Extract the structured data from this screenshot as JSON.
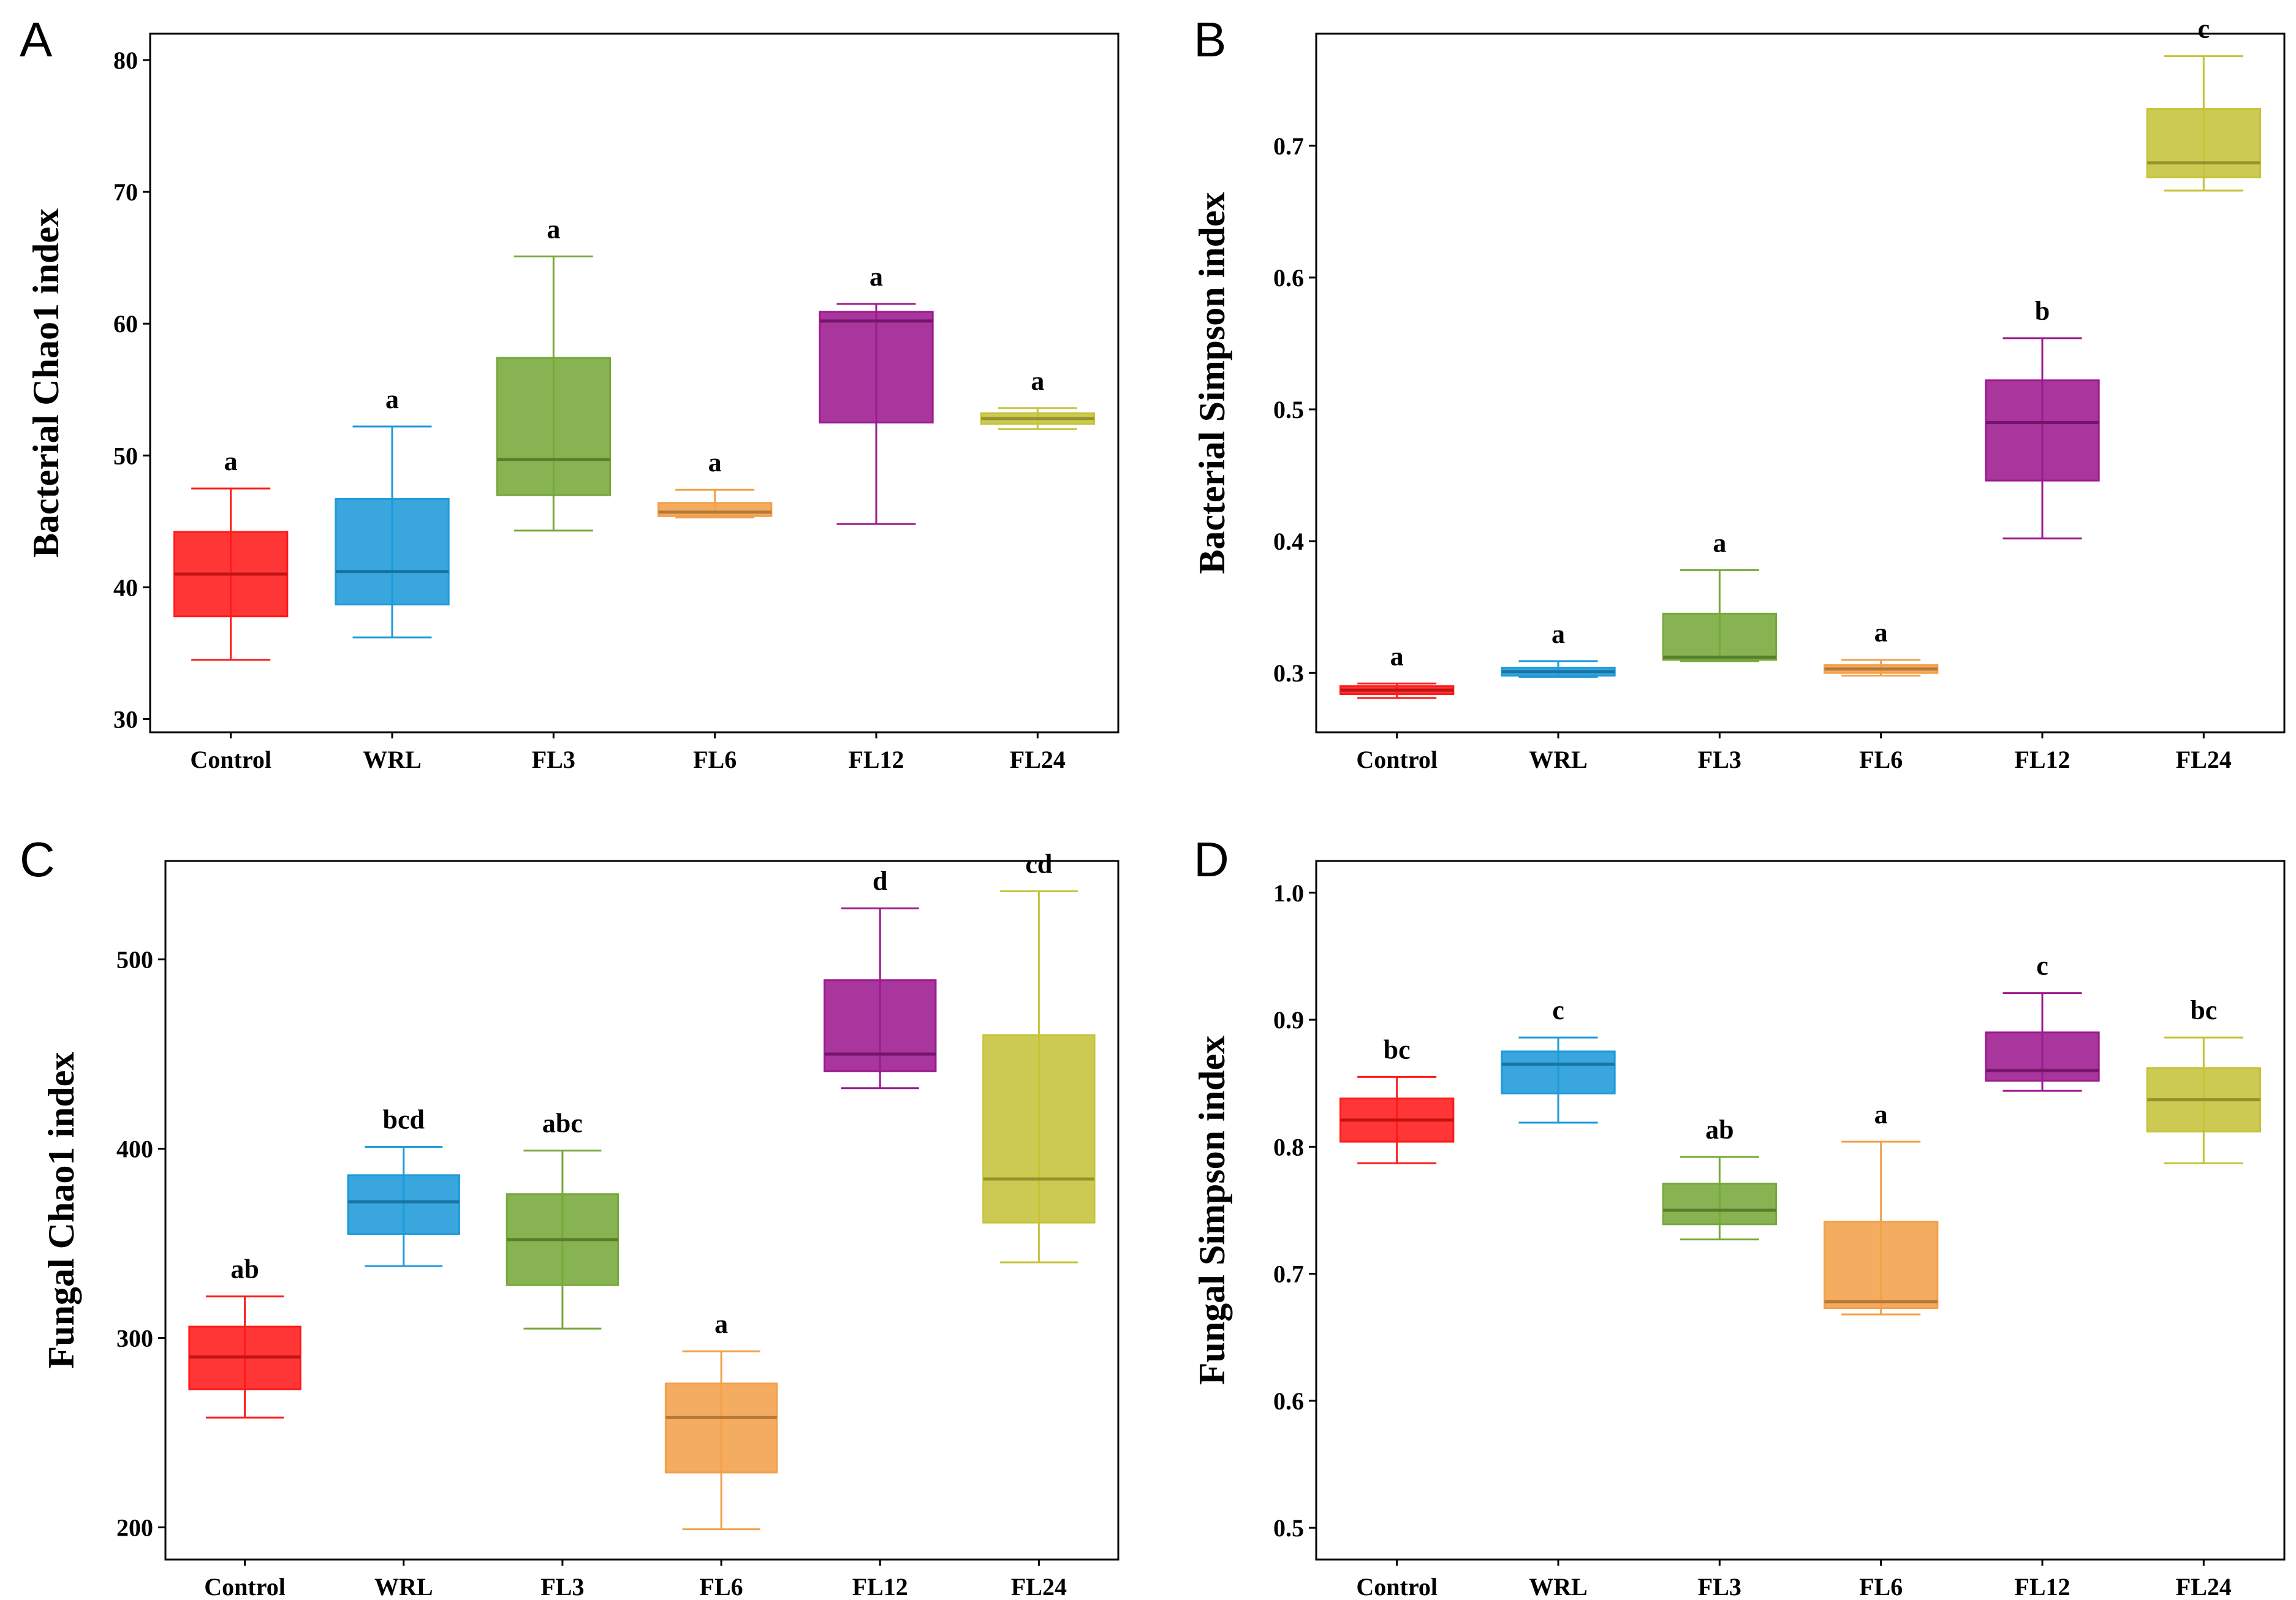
{
  "colors": {
    "Control": "#ff1a1a",
    "WRL": "#1e9ad9",
    "FL3": "#77a83a",
    "FL6": "#f2a04a",
    "FL12": "#9c1a8f",
    "FL24": "#c5c33a"
  },
  "chart_data": [
    {
      "type": "box",
      "panel": "A",
      "ylabel": "Bacterial Chao1 index",
      "ylim": [
        29,
        82
      ],
      "yticks": [
        30,
        40,
        50,
        60,
        70,
        80
      ],
      "categories": [
        "Control",
        "WRL",
        "FL3",
        "FL6",
        "FL12",
        "FL24"
      ],
      "boxes": [
        {
          "min": 34.5,
          "q1": 37.8,
          "median": 41.0,
          "q3": 44.2,
          "max": 47.5,
          "letter": "a"
        },
        {
          "min": 36.2,
          "q1": 38.7,
          "median": 41.2,
          "q3": 46.7,
          "max": 52.2,
          "letter": "a"
        },
        {
          "min": 44.3,
          "q1": 47.0,
          "median": 49.7,
          "q3": 57.4,
          "max": 65.1,
          "letter": "a"
        },
        {
          "min": 45.3,
          "q1": 45.4,
          "median": 45.7,
          "q3": 46.4,
          "max": 47.4,
          "letter": "a"
        },
        {
          "min": 44.8,
          "q1": 52.5,
          "median": 60.2,
          "q3": 60.9,
          "max": 61.5,
          "letter": "a"
        },
        {
          "min": 52.0,
          "q1": 52.4,
          "median": 52.8,
          "q3": 53.2,
          "max": 53.6,
          "letter": "a"
        }
      ]
    },
    {
      "type": "box",
      "panel": "B",
      "ylabel": "Bacterial Simpson index",
      "ylim": [
        0.255,
        0.785
      ],
      "yticks": [
        0.3,
        0.4,
        0.5,
        0.6,
        0.7
      ],
      "categories": [
        "Control",
        "WRL",
        "FL3",
        "FL6",
        "FL12",
        "FL24"
      ],
      "boxes": [
        {
          "min": 0.281,
          "q1": 0.284,
          "median": 0.287,
          "q3": 0.29,
          "max": 0.292,
          "letter": "a"
        },
        {
          "min": 0.297,
          "q1": 0.298,
          "median": 0.301,
          "q3": 0.304,
          "max": 0.309,
          "letter": "a"
        },
        {
          "min": 0.309,
          "q1": 0.31,
          "median": 0.312,
          "q3": 0.345,
          "max": 0.378,
          "letter": "a"
        },
        {
          "min": 0.298,
          "q1": 0.3,
          "median": 0.303,
          "q3": 0.306,
          "max": 0.31,
          "letter": "a"
        },
        {
          "min": 0.402,
          "q1": 0.446,
          "median": 0.49,
          "q3": 0.522,
          "max": 0.554,
          "letter": "b"
        },
        {
          "min": 0.666,
          "q1": 0.676,
          "median": 0.687,
          "q3": 0.728,
          "max": 0.768,
          "letter": "c"
        }
      ]
    },
    {
      "type": "box",
      "panel": "C",
      "ylabel": "Fungal Chao1 index",
      "ylim": [
        183,
        552
      ],
      "yticks": [
        200,
        300,
        400,
        500
      ],
      "categories": [
        "Control",
        "WRL",
        "FL3",
        "FL6",
        "FL12",
        "FL24"
      ],
      "boxes": [
        {
          "min": 258,
          "q1": 273,
          "median": 290,
          "q3": 306,
          "max": 322,
          "letter": "ab"
        },
        {
          "min": 338,
          "q1": 355,
          "median": 372,
          "q3": 386,
          "max": 401,
          "letter": "bcd"
        },
        {
          "min": 305,
          "q1": 328,
          "median": 352,
          "q3": 376,
          "max": 399,
          "letter": "abc"
        },
        {
          "min": 199,
          "q1": 229,
          "median": 258,
          "q3": 276,
          "max": 293,
          "letter": "a"
        },
        {
          "min": 432,
          "q1": 441,
          "median": 450,
          "q3": 489,
          "max": 527,
          "letter": "d"
        },
        {
          "min": 340,
          "q1": 361,
          "median": 384,
          "q3": 460,
          "max": 536,
          "letter": "cd"
        }
      ]
    },
    {
      "type": "box",
      "panel": "D",
      "ylabel": "Fungal Simpson index",
      "ylim": [
        0.475,
        1.025
      ],
      "yticks": [
        0.5,
        0.6,
        0.7,
        0.8,
        0.9,
        1.0
      ],
      "categories": [
        "Control",
        "WRL",
        "FL3",
        "FL6",
        "FL12",
        "FL24"
      ],
      "boxes": [
        {
          "min": 0.787,
          "q1": 0.804,
          "median": 0.821,
          "q3": 0.838,
          "max": 0.855,
          "letter": "bc"
        },
        {
          "min": 0.819,
          "q1": 0.842,
          "median": 0.865,
          "q3": 0.875,
          "max": 0.886,
          "letter": "c"
        },
        {
          "min": 0.727,
          "q1": 0.739,
          "median": 0.75,
          "q3": 0.771,
          "max": 0.792,
          "letter": "ab"
        },
        {
          "min": 0.668,
          "q1": 0.673,
          "median": 0.678,
          "q3": 0.741,
          "max": 0.804,
          "letter": "a"
        },
        {
          "min": 0.844,
          "q1": 0.852,
          "median": 0.86,
          "q3": 0.89,
          "max": 0.921,
          "letter": "c"
        },
        {
          "min": 0.787,
          "q1": 0.812,
          "median": 0.837,
          "q3": 0.862,
          "max": 0.886,
          "letter": "bc"
        }
      ]
    }
  ]
}
